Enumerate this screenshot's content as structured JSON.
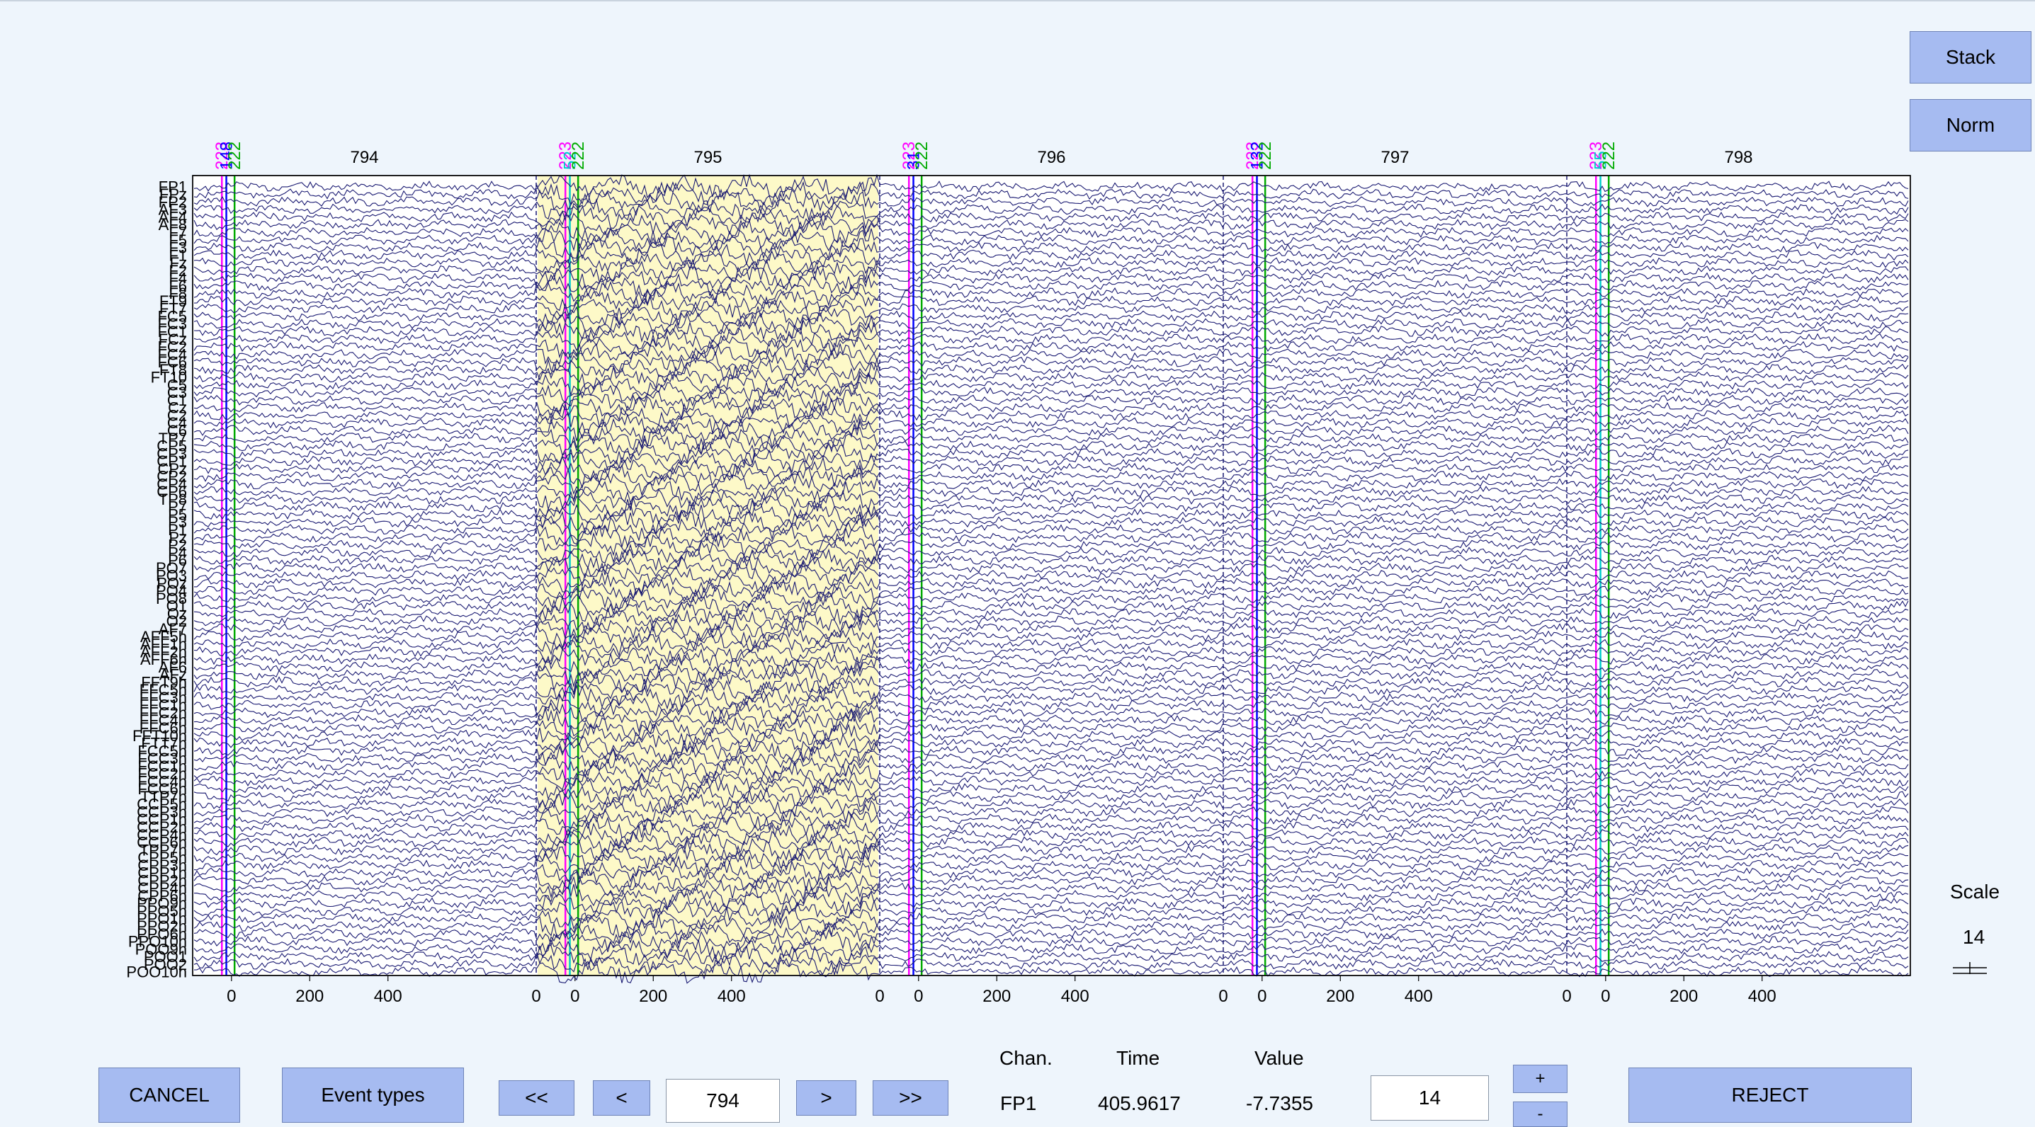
{
  "controls": {
    "stack_label": "Stack",
    "norm_label": "Norm",
    "cancel_label": "CANCEL",
    "event_types_label": "Event types",
    "first_label": "<<",
    "prev_label": "<",
    "next_label": ">",
    "last_label": ">>",
    "epoch_value": "794",
    "scale_input_value": "14",
    "plus_label": "+",
    "minus_label": "-",
    "reject_label": "REJECT"
  },
  "readout": {
    "chan_header": "Chan.",
    "time_header": "Time",
    "value_header": "Value",
    "chan_value": "FP1",
    "time_value": "405.9617",
    "value_value": "-7.7355"
  },
  "scale": {
    "title": "Scale",
    "value": "14"
  },
  "plot": {
    "background": "#ffffff",
    "trace_color": "#1a1a72",
    "rejected_epoch_color": "#fdf9c8",
    "epoch_boundary_color": "#1a1a72",
    "epochs": [
      {
        "number": "794",
        "rejected": false,
        "events": [
          {
            "label": "223",
            "color": "#ff00ff"
          },
          {
            "label": "148",
            "color": "#0000ff"
          },
          {
            "label": "222",
            "color": "#00aa00"
          }
        ]
      },
      {
        "number": "795",
        "rejected": true,
        "events": [
          {
            "label": "223",
            "color": "#ff00ff"
          },
          {
            "label": "52",
            "color": "#00cccc"
          },
          {
            "label": "222",
            "color": "#00aa00"
          }
        ]
      },
      {
        "number": "796",
        "rejected": false,
        "events": [
          {
            "label": "223",
            "color": "#ff00ff"
          },
          {
            "label": "31",
            "color": "#0000ff"
          },
          {
            "label": "222",
            "color": "#00aa00"
          }
        ]
      },
      {
        "number": "797",
        "rejected": false,
        "events": [
          {
            "label": "223",
            "color": "#ff00ff"
          },
          {
            "label": "132",
            "color": "#0000ff"
          },
          {
            "label": "222",
            "color": "#00aa00"
          }
        ]
      },
      {
        "number": "798",
        "rejected": false,
        "events": [
          {
            "label": "223",
            "color": "#ff00ff"
          },
          {
            "label": "55",
            "color": "#00cccc"
          },
          {
            "label": "222",
            "color": "#00aa00"
          }
        ]
      }
    ],
    "x_ticks": [
      "0",
      "200",
      "400"
    ],
    "channels": [
      "FP1",
      "FPz",
      "FP2",
      "AF3",
      "AF4",
      "AF8",
      "F7",
      "F5",
      "F3",
      "F1",
      "Fz",
      "F2",
      "F4",
      "F6",
      "F8",
      "FT9",
      "FT7",
      "FC5",
      "FC3",
      "FC1",
      "FCz",
      "FC2",
      "FC4",
      "FC6",
      "FT8",
      "FT10",
      "C5",
      "C3",
      "C1",
      "Cz",
      "C2",
      "C4",
      "C6",
      "TP7",
      "CP5",
      "CP3",
      "CP1",
      "CPz",
      "CP2",
      "CP4",
      "CP6",
      "TP8",
      "P7",
      "P5",
      "P3",
      "P1",
      "Pz",
      "P2",
      "P4",
      "P6",
      "PO7",
      "PO3",
      "POz",
      "PO4",
      "PO8",
      "O1",
      "Oz",
      "O2",
      "AF7",
      "AFF5h",
      "AFF1h",
      "AFF2h",
      "AFF6h",
      "AF6",
      "AFz",
      "FFT9h",
      "FFC5h",
      "FFC3h",
      "FFC1h",
      "FFC2h",
      "FFC4h",
      "FFC6h",
      "FFT10h",
      "FTT7h",
      "FCC5h",
      "FCC3h",
      "FCC1h",
      "FCC2h",
      "FCC4h",
      "FCC6h",
      "TTP7h",
      "CCP5h",
      "CCP3h",
      "CCP1h",
      "CCP2h",
      "CCP4h",
      "CCP6h",
      "TPP7h",
      "CPP5h",
      "CPP3h",
      "CPP1h",
      "CPP2h",
      "CPP4h",
      "CPP6h",
      "PPO9h",
      "PPO5h",
      "PPO1h",
      "PPO2h",
      "PPO6h",
      "PPO10h",
      "POO9h",
      "POO1",
      "POO2",
      "POO10h"
    ]
  }
}
